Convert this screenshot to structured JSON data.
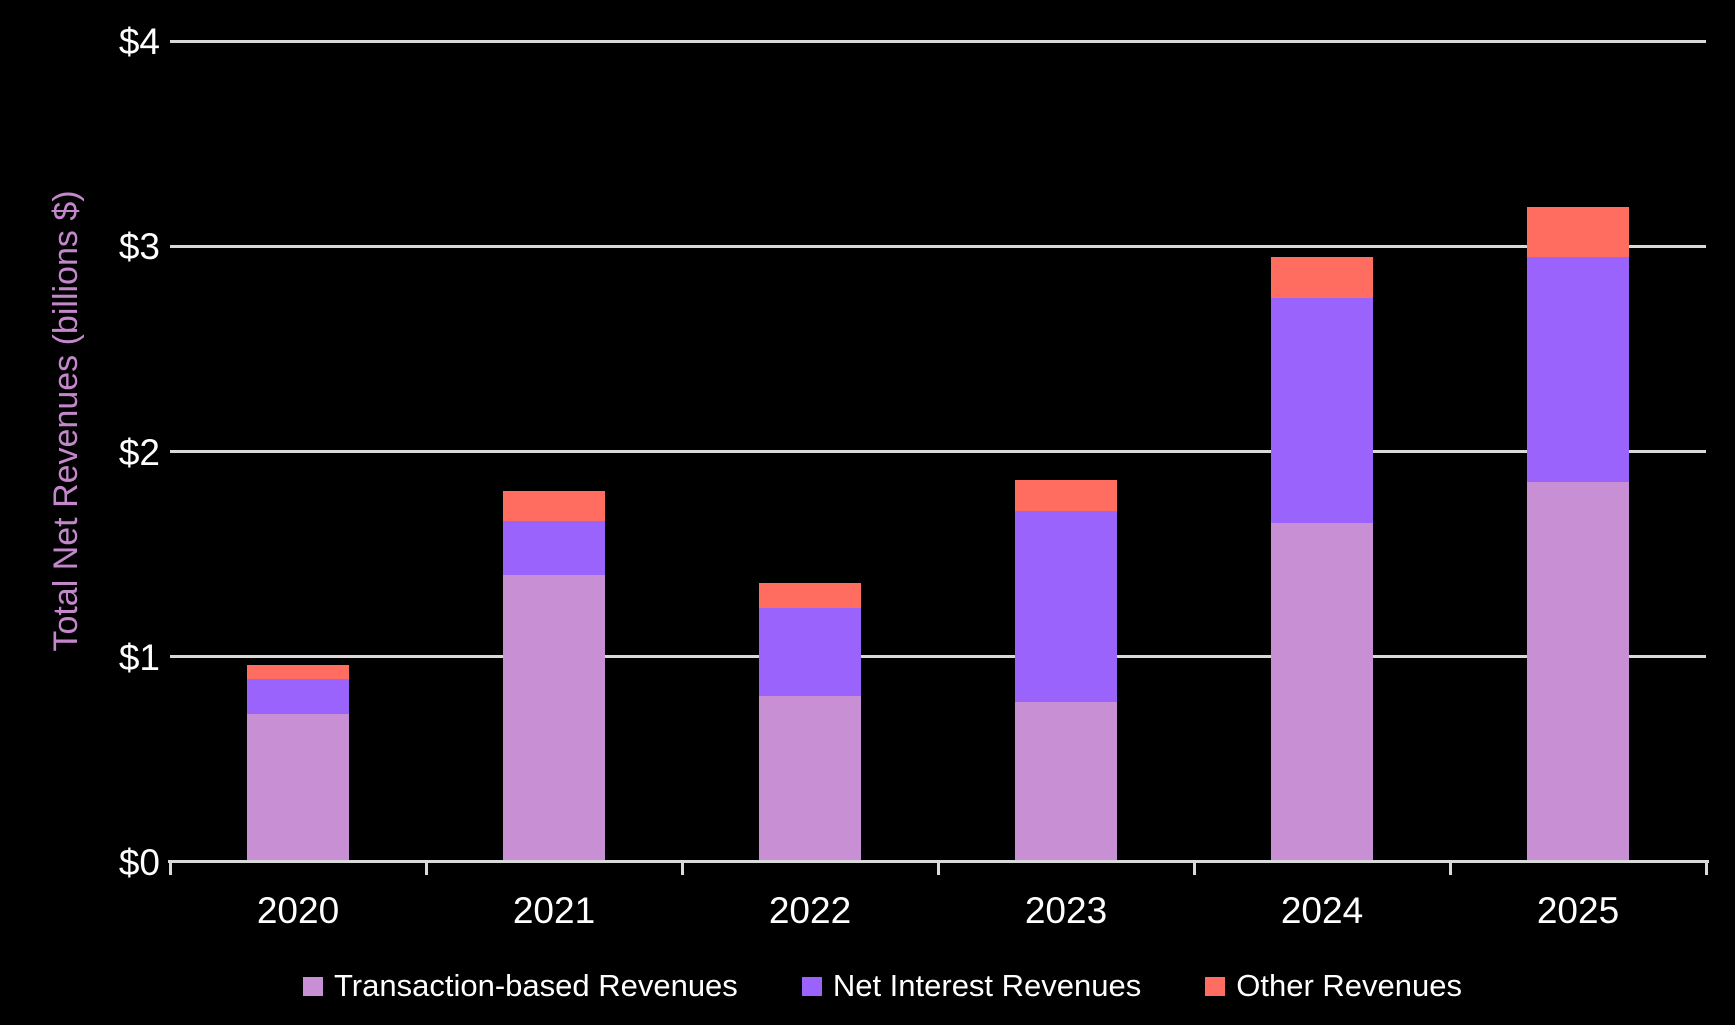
{
  "chart_data": {
    "type": "bar",
    "stacked": true,
    "title": "",
    "xlabel": "",
    "ylabel": "Total Net Revenues (billions $)",
    "categories": [
      "2020",
      "2021",
      "2022",
      "2023",
      "2024",
      "2025"
    ],
    "series": [
      {
        "name": "Transaction-based Revenues",
        "color": "#C98FD4",
        "values": [
          0.72,
          1.4,
          0.81,
          0.78,
          1.65,
          1.85
        ]
      },
      {
        "name": "Net Interest Revenues",
        "color": "#9A63FB",
        "values": [
          0.17,
          0.26,
          0.43,
          0.93,
          1.1,
          1.1
        ]
      },
      {
        "name": "Other Revenues",
        "color": "#FF6C60",
        "values": [
          0.07,
          0.15,
          0.12,
          0.15,
          0.2,
          0.24
        ]
      }
    ],
    "totals": [
      0.96,
      1.81,
      1.36,
      1.86,
      2.95,
      3.19
    ],
    "y_ticks": [
      {
        "label": "$0",
        "value": 0
      },
      {
        "label": "$1",
        "value": 1
      },
      {
        "label": "$2",
        "value": 2
      },
      {
        "label": "$3",
        "value": 3
      },
      {
        "label": "$4",
        "value": 4
      }
    ],
    "ylim": [
      0,
      4
    ],
    "grid": "horizontal",
    "legend_position": "bottom",
    "colors": {
      "background": "#000000",
      "gridline": "#D9D9D9",
      "axis_line": "#D9D9D9",
      "tick_text": "#FFFFFF",
      "legend_text": "#FFFFFF",
      "ylabel_text": "#C487CC"
    }
  }
}
